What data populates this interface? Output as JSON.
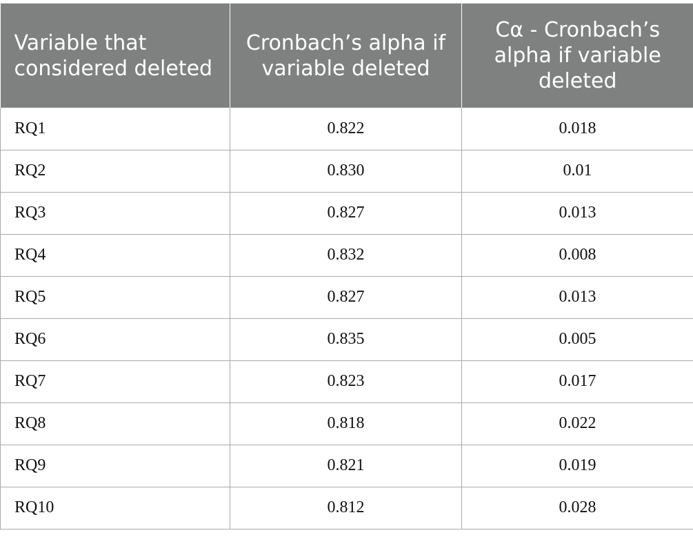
{
  "table": {
    "headers": [
      "Variable that considered deleted",
      "Cronbach’s alpha if variable deleted",
      "Cα - Cronbach’s alpha if variable deleted"
    ],
    "rows": [
      [
        "RQ1",
        "0.822",
        "0.018"
      ],
      [
        "RQ2",
        "0.830",
        "0.01"
      ],
      [
        "RQ3",
        "0.827",
        "0.013"
      ],
      [
        "RQ4",
        "0.832",
        "0.008"
      ],
      [
        "RQ5",
        "0.827",
        "0.013"
      ],
      [
        "RQ6",
        "0.835",
        "0.005"
      ],
      [
        "RQ7",
        "0.823",
        "0.017"
      ],
      [
        "RQ8",
        "0.818",
        "0.022"
      ],
      [
        "RQ9",
        "0.821",
        "0.019"
      ],
      [
        "RQ10",
        "0.812",
        "0.028"
      ]
    ]
  },
  "colors": {
    "header_background": "#7f8180",
    "header_text": "#ffffff",
    "grid_line": "#a9a9a9"
  }
}
